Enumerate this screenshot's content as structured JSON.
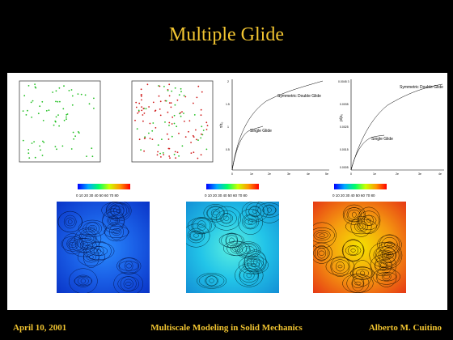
{
  "slide": {
    "title": "Multiple Glide",
    "footer_left": "April 10, 2001",
    "footer_center": "Multiscale Modeling in Solid Mechanics",
    "footer_right": "Alberto M. Cuitino"
  },
  "plots": {
    "left": {
      "ylabel": "τ/τ₀",
      "curve_top": "Symmetric Double Glide",
      "curve_bottom": "Single Glide",
      "yticks": [
        "2",
        "1.5",
        "1",
        "0.5"
      ],
      "xticks": [
        "0",
        "1e",
        "2e",
        "3e",
        "4e",
        "5e"
      ]
    },
    "right": {
      "ylabel": "ρ/ρ₀",
      "curve_top": "Symmetric Double Glide",
      "curve_bottom": "Single Glide",
      "yticks": [
        "0.0045 3",
        "0.0035",
        "0.0025",
        "0.0015",
        "0.0005"
      ],
      "xticks": [
        "0",
        "1e",
        "2e",
        "3e",
        "4e"
      ]
    }
  },
  "colorbars": [
    {
      "labels": "0 10 20 30 40 50 60 70 80",
      "scheme": "blue"
    },
    {
      "labels": "0 10 20 30 40 50 60 70 80",
      "scheme": "cyan"
    },
    {
      "labels": "0 10 20 30 40 50 60 70 80",
      "scheme": "warm"
    }
  ],
  "colors": {
    "background": "#000000",
    "title": "#F2C531",
    "panel": "#ffffff",
    "dot_green": "#22c022",
    "dot_red": "#d01a1a"
  }
}
